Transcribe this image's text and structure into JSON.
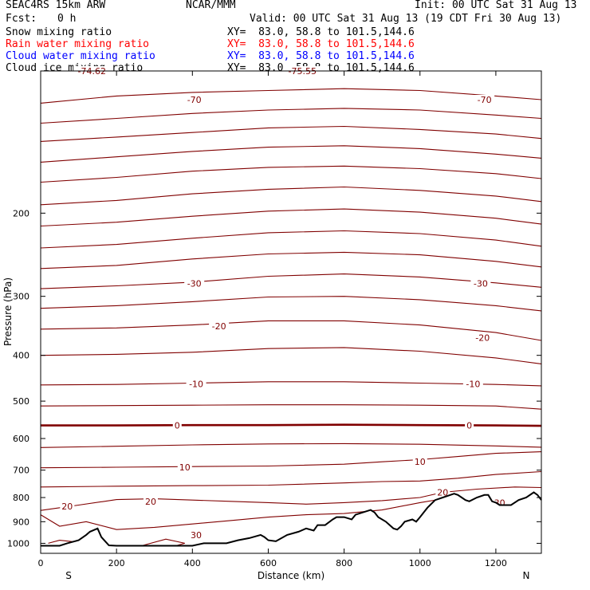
{
  "header": {
    "model": "SEAC4RS 15km ARW",
    "fcst_label": "Fcst:",
    "fcst_value": "0 h",
    "center": "NCAR/MMM",
    "init": "Init: 00 UTC Sat 31 Aug 13",
    "valid": "Valid: 00 UTC Sat 31 Aug 13 (19 CDT Fri 30 Aug 13)",
    "fields": [
      {
        "label": "Snow mixing ratio",
        "xy": "XY=  83.0, 58.8 to 101.5,144.6",
        "color": "#000000"
      },
      {
        "label": "Rain water mixing ratio",
        "xy": "XY=  83.0, 58.8 to 101.5,144.6",
        "color": "#ff0000"
      },
      {
        "label": "Cloud water mixing ratio",
        "xy": "XY=  83.0, 58.8 to 101.5,144.6",
        "color": "#0000ff"
      },
      {
        "label": "Cloud ice mixing ratio",
        "xy": "XY=  83.0, 58.8 to 101.5,144.6",
        "color": "#000000"
      }
    ]
  },
  "chart_data": {
    "type": "line",
    "xlabel": "Distance (km)",
    "ylabel": "Pressure (hPa)",
    "xlim": [
      0,
      1320
    ],
    "ylim": [
      1050,
      100
    ],
    "y_scale": "log",
    "x_ticks": [
      0,
      200,
      400,
      600,
      800,
      1000,
      1200
    ],
    "y_ticks": [
      200,
      300,
      400,
      500,
      600,
      700,
      800,
      900,
      1000
    ],
    "direction_labels": {
      "left": "S",
      "right": "N"
    },
    "contour_color": "#800000",
    "terrain_color": "#000000",
    "isotherm_labels": [
      {
        "value": "-74.62",
        "x": 135,
        "p": 100
      },
      {
        "value": "-75.55",
        "x": 690,
        "p": 100
      },
      {
        "value": "-70",
        "x": 405,
        "p": 115
      },
      {
        "value": "-70",
        "x": 1170,
        "p": 115
      },
      {
        "value": "-30",
        "x": 405,
        "p": 282
      },
      {
        "value": "-30",
        "x": 1160,
        "p": 282
      },
      {
        "value": "-20",
        "x": 470,
        "p": 347
      },
      {
        "value": "-20",
        "x": 1165,
        "p": 367
      },
      {
        "value": "-10",
        "x": 410,
        "p": 460
      },
      {
        "value": "-10",
        "x": 1140,
        "p": 460
      },
      {
        "value": "0",
        "x": 360,
        "p": 563
      },
      {
        "value": "0",
        "x": 1130,
        "p": 563
      },
      {
        "value": "10",
        "x": 380,
        "p": 690
      },
      {
        "value": "10",
        "x": 1000,
        "p": 671
      },
      {
        "value": "20",
        "x": 290,
        "p": 815
      },
      {
        "value": "20",
        "x": 1060,
        "p": 780
      },
      {
        "value": "20",
        "x": 70,
        "p": 835
      },
      {
        "value": "30",
        "x": 410,
        "p": 960
      },
      {
        "value": "30",
        "x": 1210,
        "p": 820
      }
    ],
    "isotherms": [
      {
        "value": -70,
        "x": [
          0,
          200,
          400,
          600,
          800,
          1000,
          1200,
          1320
        ],
        "p": [
          117,
          113,
          111,
          110,
          109,
          110,
          113,
          115
        ]
      },
      {
        "value": -70,
        "x": [
          0,
          200,
          400,
          600,
          800,
          1000,
          1200,
          1320
        ],
        "p": [
          129,
          126,
          123,
          121,
          120,
          121,
          124,
          126
        ]
      },
      {
        "value": -65,
        "x": [
          0,
          200,
          400,
          600,
          800,
          1000,
          1200,
          1320
        ],
        "p": [
          141,
          138,
          135,
          132,
          131,
          133,
          136,
          139
        ]
      },
      {
        "value": -60,
        "x": [
          0,
          200,
          400,
          600,
          800,
          1000,
          1200,
          1320
        ],
        "p": [
          156,
          152,
          148,
          145,
          144,
          146,
          150,
          153
        ]
      },
      {
        "value": -55,
        "x": [
          0,
          200,
          400,
          600,
          800,
          1000,
          1200,
          1320
        ],
        "p": [
          172,
          168,
          163,
          160,
          159,
          161,
          165,
          169
        ]
      },
      {
        "value": -50,
        "x": [
          0,
          200,
          400,
          600,
          800,
          1000,
          1200,
          1320
        ],
        "p": [
          192,
          188,
          182,
          178,
          176,
          179,
          184,
          189
        ]
      },
      {
        "value": -45,
        "x": [
          0,
          200,
          400,
          600,
          800,
          1000,
          1200,
          1320
        ],
        "p": [
          213,
          209,
          203,
          198,
          196,
          199,
          205,
          211
        ]
      },
      {
        "value": -40,
        "x": [
          0,
          200,
          400,
          600,
          800,
          1000,
          1200,
          1320
        ],
        "p": [
          237,
          233,
          226,
          220,
          218,
          221,
          228,
          235
        ]
      },
      {
        "value": -35,
        "x": [
          0,
          200,
          400,
          600,
          800,
          1000,
          1200,
          1320
        ],
        "p": [
          262,
          258,
          250,
          244,
          242,
          245,
          253,
          260
        ]
      },
      {
        "value": -30,
        "x": [
          0,
          200,
          400,
          600,
          800,
          1000,
          1200,
          1320
        ],
        "p": [
          289,
          285,
          280,
          272,
          269,
          273,
          281,
          287
        ]
      },
      {
        "value": -25,
        "x": [
          0,
          200,
          400,
          600,
          800,
          1000,
          1200,
          1320
        ],
        "p": [
          318,
          314,
          308,
          301,
          300,
          305,
          314,
          322
        ]
      },
      {
        "value": -20,
        "x": [
          0,
          200,
          400,
          600,
          800,
          1000,
          1200,
          1320
        ],
        "p": [
          352,
          350,
          345,
          338,
          338,
          345,
          358,
          372
        ]
      },
      {
        "value": -15,
        "x": [
          0,
          200,
          400,
          600,
          800,
          1000,
          1200,
          1320
        ],
        "p": [
          400,
          398,
          394,
          387,
          385,
          392,
          405,
          417
        ]
      },
      {
        "value": -10,
        "x": [
          0,
          200,
          400,
          600,
          800,
          1000,
          1200,
          1320
        ],
        "p": [
          462,
          461,
          458,
          455,
          455,
          458,
          461,
          464
        ]
      },
      {
        "value": -5,
        "x": [
          0,
          200,
          400,
          600,
          800,
          1000,
          1200,
          1320
        ],
        "p": [
          512,
          511,
          510,
          509,
          509,
          510,
          512,
          520
        ]
      },
      {
        "value": 0,
        "x": [
          0,
          200,
          400,
          600,
          800,
          1000,
          1200,
          1320
        ],
        "p": [
          563,
          563,
          562,
          562,
          561,
          562,
          563,
          564
        ],
        "bold": true
      },
      {
        "value": 5,
        "x": [
          0,
          200,
          400,
          600,
          800,
          1000,
          1200,
          1320
        ],
        "p": [
          627,
          623,
          619,
          616,
          615,
          617,
          622,
          626
        ]
      },
      {
        "value": 10,
        "x": [
          0,
          200,
          400,
          600,
          800,
          900,
          1000,
          1100,
          1200,
          1320
        ],
        "p": [
          692,
          690,
          688,
          686,
          680,
          672,
          665,
          655,
          645,
          640
        ]
      },
      {
        "value": 15,
        "x": [
          0,
          200,
          400,
          600,
          800,
          900,
          1000,
          1100,
          1200,
          1320
        ],
        "p": [
          760,
          757,
          755,
          753,
          745,
          740,
          738,
          728,
          715,
          705
        ]
      },
      {
        "value": 20,
        "x": [
          0,
          100,
          200,
          300,
          400,
          500,
          600,
          700,
          800,
          900,
          1000,
          1060,
          1150,
          1250,
          1320
        ],
        "p": [
          852,
          830,
          808,
          805,
          810,
          815,
          820,
          826,
          820,
          812,
          800,
          780,
          768,
          760,
          762
        ]
      },
      {
        "value": 25,
        "x": [
          0,
          50,
          120,
          200,
          300,
          400,
          500,
          600,
          700,
          800,
          900,
          1000,
          1080
        ],
        "p": [
          870,
          920,
          900,
          935,
          925,
          910,
          895,
          880,
          870,
          865,
          850,
          820,
          800
        ]
      },
      {
        "value": 30,
        "x": [
          20,
          50,
          100,
          130
        ],
        "p": [
          1000,
          985,
          995,
          1010
        ]
      },
      {
        "value": 30,
        "x": [
          270,
          330,
          380,
          360
        ],
        "p": [
          1010,
          980,
          1000,
          1010
        ]
      }
    ],
    "terrain": {
      "x": [
        0,
        50,
        70,
        100,
        120,
        130,
        150,
        160,
        180,
        200,
        220,
        250,
        300,
        350,
        400,
        430,
        460,
        490,
        520,
        550,
        580,
        590,
        600,
        620,
        650,
        680,
        700,
        720,
        730,
        750,
        770,
        780,
        800,
        820,
        830,
        850,
        870,
        880,
        890,
        910,
        930,
        940,
        950,
        960,
        980,
        990,
        1000,
        1010,
        1020,
        1040,
        1060,
        1080,
        1090,
        1100,
        1110,
        1120,
        1130,
        1150,
        1170,
        1180,
        1190,
        1200,
        1210,
        1240,
        1260,
        1280,
        1300,
        1310,
        1320
      ],
      "p": [
        1012,
        1012,
        1000,
        985,
        960,
        945,
        930,
        970,
        1010,
        1012,
        1012,
        1012,
        1012,
        1012,
        1012,
        1000,
        1000,
        1000,
        985,
        975,
        960,
        970,
        985,
        990,
        960,
        945,
        930,
        940,
        915,
        915,
        890,
        880,
        880,
        890,
        870,
        860,
        850,
        860,
        880,
        900,
        930,
        935,
        920,
        900,
        890,
        900,
        880,
        860,
        840,
        810,
        800,
        790,
        785,
        790,
        800,
        810,
        815,
        800,
        790,
        790,
        815,
        820,
        830,
        830,
        810,
        800,
        780,
        790,
        810
      ]
    }
  }
}
